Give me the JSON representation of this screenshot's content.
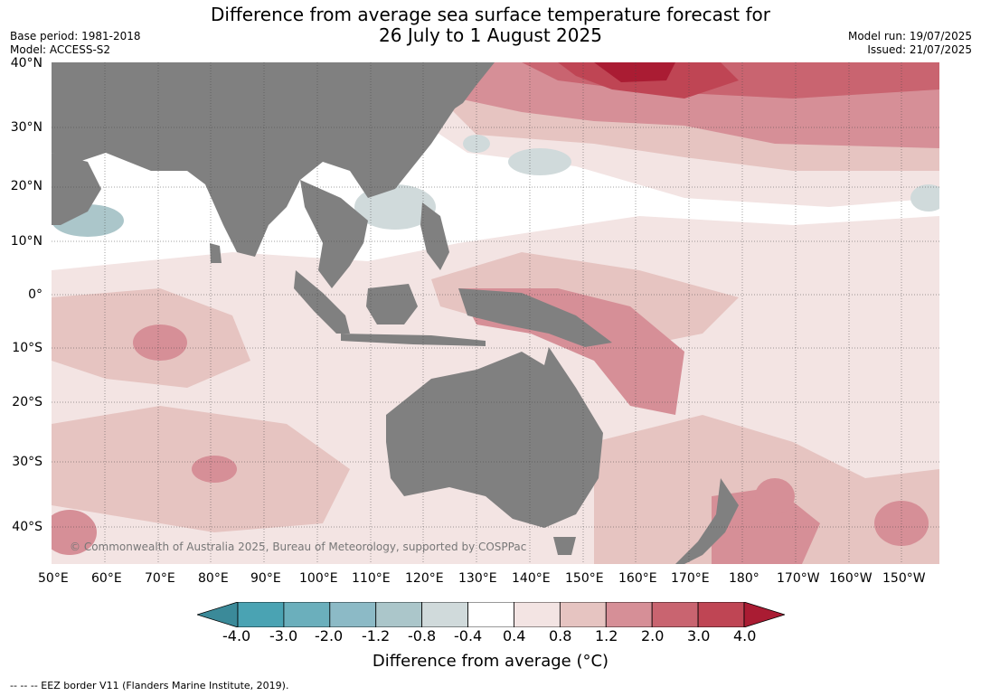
{
  "title": {
    "line1": "Difference from average sea surface temperature forecast for",
    "line2": "26 July to 1 August 2025"
  },
  "meta_left": {
    "base_period": "Base period: 1981-2018",
    "model": "Model: ACCESS-S2"
  },
  "meta_right": {
    "model_run": "Model run: 19/07/2025",
    "issued": "Issued: 21/07/2025"
  },
  "map": {
    "lat_labels": [
      "40°N",
      "30°N",
      "20°N",
      "10°N",
      "0°",
      "10°S",
      "20°S",
      "30°S",
      "40°S"
    ],
    "lon_labels": [
      "50°E",
      "60°E",
      "70°E",
      "80°E",
      "90°E",
      "100°E",
      "110°E",
      "120°E",
      "130°E",
      "140°E",
      "150°E",
      "160°E",
      "170°E",
      "180°",
      "170°W",
      "160°W",
      "150°W"
    ],
    "copyright": "© Commonwealth of Australia 2025, Bureau of Meteorology, supported by COSPPac",
    "land_color": "#808080",
    "ocean_base_color": "#ffffff"
  },
  "legend": {
    "ticks": [
      "-4.0",
      "-3.0",
      "-2.0",
      "-1.2",
      "-0.8",
      "-0.4",
      "0.4",
      "0.8",
      "1.2",
      "2.0",
      "3.0",
      "4.0"
    ],
    "colors": [
      "#3b8a99",
      "#4aa3b3",
      "#6bafbc",
      "#8cbac6",
      "#abc6ca",
      "#d0dadb",
      "#ffffff",
      "#f3e4e3",
      "#e6c4c1",
      "#d68f97",
      "#c96470",
      "#bf4554",
      "#aa1c33"
    ],
    "title": "Difference from average (°C)"
  },
  "footer": "--  --  -- EEZ border V11 (Flanders Marine Institute, 2019)."
}
